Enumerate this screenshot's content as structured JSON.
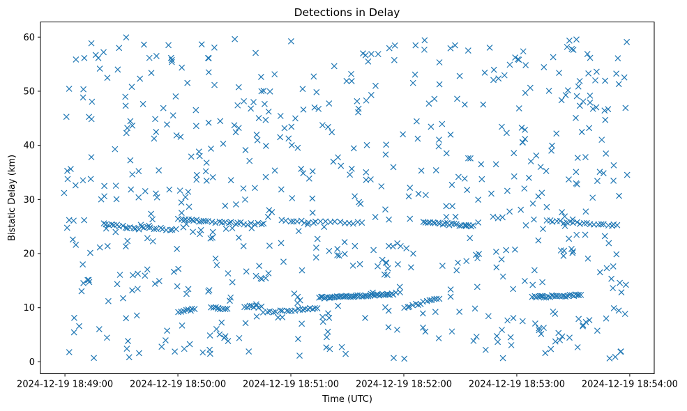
{
  "chart_data": {
    "type": "scatter",
    "title": "Detections in Delay",
    "xlabel": "Time (UTC)",
    "ylabel": "Bistatic Delay (km)",
    "marker": "x",
    "color": "#1f77b4",
    "grid": false,
    "x_ticks": [
      "2024-12-19 18:49:00",
      "2024-12-19 18:50:00",
      "2024-12-19 18:51:00",
      "2024-12-19 18:52:00",
      "2024-12-19 18:53:00",
      "2024-12-19 18:54:00"
    ],
    "y_ticks": [
      "0",
      "10",
      "20",
      "30",
      "40",
      "50",
      "60"
    ],
    "xlim": [
      "2024-12-19 18:48:47",
      "2024-12-19 18:54:13"
    ],
    "ylim": [
      -2.2,
      62.8
    ],
    "x_domain": [
      "2024-12-19 18:48:59",
      "2024-12-19 18:53:59"
    ],
    "y_domain": [
      0.5,
      60
    ],
    "noise_points": 620,
    "tracks": [
      {
        "start": "2024-12-19 18:49:20",
        "end": "2024-12-19 18:49:40",
        "y_start": 25.6,
        "y_end": 24.4,
        "points": 14
      },
      {
        "start": "2024-12-19 18:49:40",
        "end": "2024-12-19 18:50:00",
        "y_start": 24.8,
        "y_end": 24.4,
        "points": 12
      },
      {
        "start": "2024-12-19 18:50:00",
        "end": "2024-12-19 18:50:16",
        "y_start": 26.4,
        "y_end": 25.9,
        "points": 12
      },
      {
        "start": "2024-12-19 18:50:16",
        "end": "2024-12-19 18:50:47",
        "y_start": 25.8,
        "y_end": 25.4,
        "points": 18
      },
      {
        "start": "2024-12-19 18:50:55",
        "end": "2024-12-19 18:51:15",
        "y_start": 26.1,
        "y_end": 25.7,
        "points": 10
      },
      {
        "start": "2024-12-19 18:51:15",
        "end": "2024-12-19 18:51:40",
        "y_start": 25.9,
        "y_end": 25.6,
        "points": 10
      },
      {
        "start": "2024-12-19 18:52:10",
        "end": "2024-12-19 18:52:38",
        "y_start": 25.8,
        "y_end": 25.1,
        "points": 22
      },
      {
        "start": "2024-12-19 18:53:15",
        "end": "2024-12-19 18:53:55",
        "y_start": 26.0,
        "y_end": 25.2,
        "points": 22
      },
      {
        "start": "2024-12-19 18:50:00",
        "end": "2024-12-19 18:50:10",
        "y_start": 9.3,
        "y_end": 9.8,
        "points": 8
      },
      {
        "start": "2024-12-19 18:50:17",
        "end": "2024-12-19 18:50:27",
        "y_start": 9.9,
        "y_end": 9.9,
        "points": 8
      },
      {
        "start": "2024-12-19 18:50:35",
        "end": "2024-12-19 18:50:45",
        "y_start": 10.2,
        "y_end": 10.2,
        "points": 8
      },
      {
        "start": "2024-12-19 18:50:45",
        "end": "2024-12-19 18:51:02",
        "y_start": 9.2,
        "y_end": 9.5,
        "points": 10
      },
      {
        "start": "2024-12-19 18:51:02",
        "end": "2024-12-19 18:51:15",
        "y_start": 9.6,
        "y_end": 10.0,
        "points": 10
      },
      {
        "start": "2024-12-19 18:51:15",
        "end": "2024-12-19 18:51:55",
        "y_start": 11.8,
        "y_end": 12.6,
        "points": 48
      },
      {
        "start": "2024-12-19 18:52:00",
        "end": "2024-12-19 18:52:20",
        "y_start": 10.0,
        "y_end": 11.8,
        "points": 14
      },
      {
        "start": "2024-12-19 18:53:08",
        "end": "2024-12-19 18:53:35",
        "y_start": 11.9,
        "y_end": 12.4,
        "points": 26
      }
    ]
  }
}
